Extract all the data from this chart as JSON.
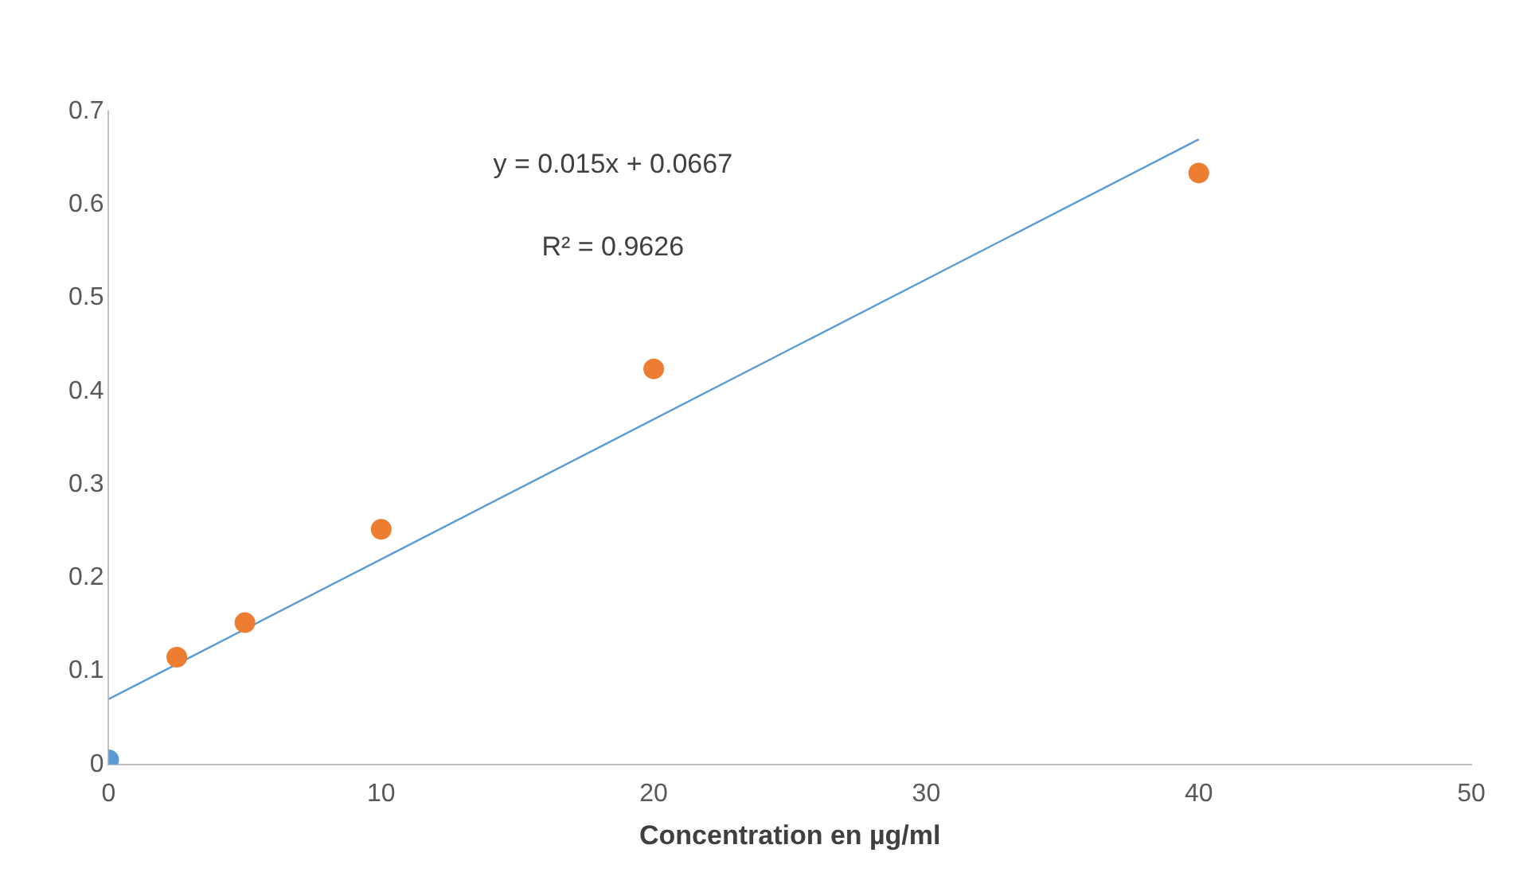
{
  "chart_data": {
    "type": "scatter",
    "xlabel": "Concentration en µg/ml",
    "xlim": [
      0,
      50
    ],
    "xticks": [
      0,
      10,
      20,
      30,
      40,
      50
    ],
    "ylim": [
      0,
      0.7
    ],
    "yticks": [
      0,
      0.1,
      0.2,
      0.3,
      0.4,
      0.5,
      0.6,
      0.7
    ],
    "grid": false,
    "legend": false,
    "marker": "circle",
    "series": [
      {
        "type": "scatter",
        "color": "#5b9bd5",
        "x": [
          0
        ],
        "values": [
          0.005
        ]
      },
      {
        "type": "scatter",
        "color": "#ed7d31",
        "x": [
          2.5,
          5,
          10,
          20,
          40
        ],
        "values": [
          0.115,
          0.152,
          0.252,
          0.424,
          0.634
        ]
      },
      {
        "type": "line",
        "color": "#5b9bd5",
        "marker": "none",
        "line_style": "solid",
        "x": [
          0,
          40
        ],
        "values": [
          0.07,
          0.67
        ]
      }
    ],
    "annotations": [
      "y = 0.015x + 0.0667",
      "R² = 0.9626"
    ]
  }
}
